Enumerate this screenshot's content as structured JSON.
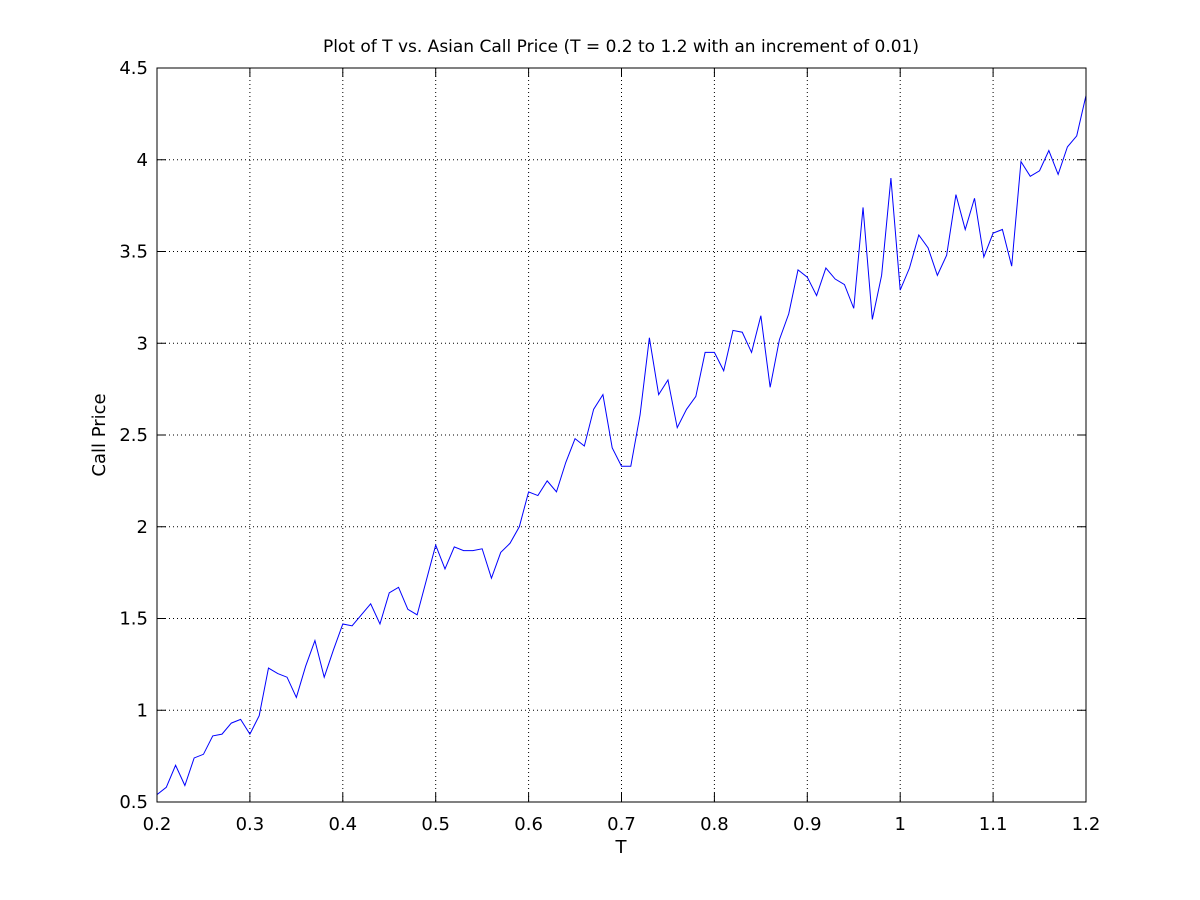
{
  "chart_data": {
    "type": "line",
    "title": "Plot of T vs. Asian Call Price (T = 0.2 to 1.2 with an increment of 0.01)",
    "xlabel": "T",
    "ylabel": "Call Price",
    "xlim": [
      0.2,
      1.2
    ],
    "ylim": [
      0.5,
      4.5
    ],
    "grid": true,
    "x_ticks": [
      "0.2",
      "0.3",
      "0.4",
      "0.5",
      "0.6",
      "0.7",
      "0.8",
      "0.9",
      "1",
      "1.1",
      "1.2"
    ],
    "y_ticks": [
      "0.5",
      "1",
      "1.5",
      "2",
      "2.5",
      "3",
      "3.5",
      "4",
      "4.5"
    ],
    "series": [
      {
        "color": "#0000ff",
        "x": [
          0.2,
          0.21,
          0.22,
          0.23,
          0.24,
          0.25,
          0.26,
          0.27,
          0.28,
          0.29,
          0.3,
          0.31,
          0.32,
          0.33,
          0.34,
          0.35,
          0.36,
          0.37,
          0.38,
          0.39,
          0.4,
          0.41,
          0.42,
          0.43,
          0.44,
          0.45,
          0.46,
          0.47,
          0.48,
          0.49,
          0.5,
          0.51,
          0.52,
          0.53,
          0.54,
          0.55,
          0.56,
          0.57,
          0.58,
          0.59,
          0.6,
          0.61,
          0.62,
          0.63,
          0.64,
          0.65,
          0.66,
          0.67,
          0.68,
          0.69,
          0.7,
          0.71,
          0.72,
          0.73,
          0.74,
          0.75,
          0.76,
          0.77,
          0.78,
          0.79,
          0.8,
          0.81,
          0.82,
          0.83,
          0.84,
          0.85,
          0.86,
          0.87,
          0.88,
          0.89,
          0.9,
          0.91,
          0.92,
          0.93,
          0.94,
          0.95,
          0.96,
          0.97,
          0.98,
          0.99,
          1.0,
          1.01,
          1.02,
          1.03,
          1.04,
          1.05,
          1.06,
          1.07,
          1.08,
          1.09,
          1.1,
          1.11,
          1.12,
          1.13,
          1.14,
          1.15,
          1.16,
          1.17,
          1.18,
          1.19,
          1.2
        ],
        "y": [
          0.54,
          0.58,
          0.7,
          0.59,
          0.74,
          0.76,
          0.86,
          0.87,
          0.93,
          0.95,
          0.87,
          0.97,
          1.23,
          1.2,
          1.18,
          1.07,
          1.24,
          1.38,
          1.18,
          1.33,
          1.47,
          1.46,
          1.52,
          1.58,
          1.47,
          1.64,
          1.67,
          1.55,
          1.52,
          1.71,
          1.9,
          1.77,
          1.89,
          1.87,
          1.87,
          1.88,
          1.72,
          1.86,
          1.91,
          2.0,
          2.19,
          2.17,
          2.25,
          2.19,
          2.35,
          2.48,
          2.44,
          2.64,
          2.72,
          2.43,
          2.33,
          2.33,
          2.61,
          3.03,
          2.72,
          2.8,
          2.54,
          2.64,
          2.71,
          2.95,
          2.95,
          2.85,
          3.07,
          3.06,
          2.95,
          3.15,
          2.76,
          3.02,
          3.16,
          3.4,
          3.36,
          3.26,
          3.41,
          3.35,
          3.32,
          3.19,
          3.74,
          3.13,
          3.37,
          3.9,
          3.29,
          3.41,
          3.59,
          3.52,
          3.37,
          3.48,
          3.81,
          3.62,
          3.79,
          3.47,
          3.6,
          3.62,
          3.42,
          3.99,
          3.91,
          3.94,
          4.05,
          3.92,
          4.07,
          4.13,
          4.35
        ]
      }
    ]
  }
}
